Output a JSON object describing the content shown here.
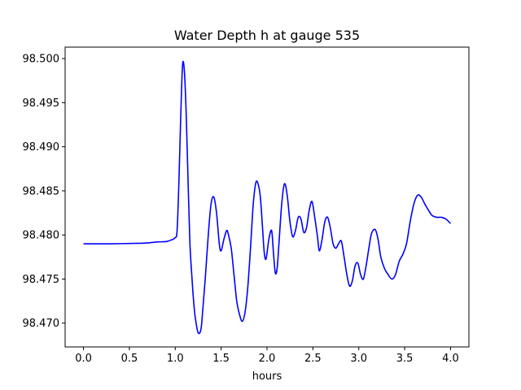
{
  "chart_data": {
    "type": "line",
    "title": "Water Depth h at gauge 535",
    "xlabel": "hours",
    "ylabel": "",
    "xlim": [
      -0.2,
      4.2
    ],
    "ylim": [
      98.4673,
      98.5013
    ],
    "x_ticks": [
      {
        "value": 0.0,
        "label": "0.0"
      },
      {
        "value": 0.5,
        "label": "0.5"
      },
      {
        "value": 1.0,
        "label": "1.0"
      },
      {
        "value": 1.5,
        "label": "1.5"
      },
      {
        "value": 2.0,
        "label": "2.0"
      },
      {
        "value": 2.5,
        "label": "2.5"
      },
      {
        "value": 3.0,
        "label": "3.0"
      },
      {
        "value": 3.5,
        "label": "3.5"
      },
      {
        "value": 4.0,
        "label": "4.0"
      }
    ],
    "y_ticks": [
      {
        "value": 98.47,
        "label": "98.470"
      },
      {
        "value": 98.475,
        "label": "98.475"
      },
      {
        "value": 98.48,
        "label": "98.480"
      },
      {
        "value": 98.485,
        "label": "98.485"
      },
      {
        "value": 98.49,
        "label": "98.490"
      },
      {
        "value": 98.495,
        "label": "98.495"
      },
      {
        "value": 98.5,
        "label": "98.500"
      }
    ],
    "grid": false,
    "series": [
      {
        "color": "#0000ff",
        "x": [
          0.0,
          0.3,
          0.6,
          0.7,
          0.8,
          0.9,
          0.95,
          1.0,
          1.02,
          1.04,
          1.06,
          1.08,
          1.1,
          1.12,
          1.14,
          1.16,
          1.18,
          1.2,
          1.22,
          1.25,
          1.28,
          1.3,
          1.33,
          1.36,
          1.39,
          1.42,
          1.45,
          1.48,
          1.5,
          1.53,
          1.56,
          1.58,
          1.61,
          1.64,
          1.67,
          1.7,
          1.73,
          1.76,
          1.79,
          1.82,
          1.85,
          1.88,
          1.91,
          1.93,
          1.95,
          1.97,
          1.99,
          2.02,
          2.05,
          2.07,
          2.09,
          2.11,
          2.13,
          2.16,
          2.19,
          2.22,
          2.25,
          2.28,
          2.31,
          2.34,
          2.37,
          2.4,
          2.43,
          2.46,
          2.49,
          2.52,
          2.55,
          2.57,
          2.6,
          2.63,
          2.66,
          2.69,
          2.72,
          2.75,
          2.78,
          2.81,
          2.84,
          2.87,
          2.9,
          2.93,
          2.96,
          2.99,
          3.02,
          3.05,
          3.08,
          3.11,
          3.14,
          3.18,
          3.21,
          3.24,
          3.28,
          3.32,
          3.36,
          3.4,
          3.44,
          3.48,
          3.52,
          3.56,
          3.6,
          3.64,
          3.68,
          3.72,
          3.76,
          3.8,
          3.85,
          3.9,
          3.95,
          4.0
        ],
        "y": [
          98.479,
          98.479,
          98.47905,
          98.4791,
          98.4792,
          98.47925,
          98.4794,
          98.4797,
          98.4805,
          98.486,
          98.4935,
          98.4993,
          98.4985,
          98.4935,
          98.486,
          98.479,
          98.4755,
          98.4725,
          98.4705,
          98.4689,
          98.4693,
          98.4715,
          98.4755,
          98.48,
          98.4835,
          98.4843,
          98.4825,
          98.479,
          98.4782,
          98.4795,
          98.4805,
          98.48,
          98.4785,
          98.4755,
          98.4725,
          98.471,
          98.4702,
          98.4712,
          98.474,
          98.4785,
          98.4835,
          98.486,
          98.4855,
          98.484,
          98.481,
          98.478,
          98.4773,
          98.4795,
          98.4805,
          98.478,
          98.4757,
          98.4762,
          98.479,
          98.4835,
          98.4858,
          98.4845,
          98.4815,
          98.4798,
          98.4805,
          98.482,
          98.4818,
          98.4803,
          98.4808,
          98.4828,
          98.4838,
          98.482,
          98.4798,
          98.4782,
          98.4795,
          98.4815,
          98.482,
          98.4808,
          98.479,
          98.4785,
          98.479,
          98.4793,
          98.4775,
          98.4755,
          98.4742,
          98.4748,
          98.4765,
          98.4768,
          98.4755,
          98.475,
          98.4765,
          98.4785,
          98.4802,
          98.4806,
          98.4795,
          98.4775,
          98.4762,
          98.4755,
          98.475,
          98.4755,
          98.477,
          98.4778,
          98.479,
          98.4815,
          98.4835,
          98.4845,
          98.4843,
          98.4835,
          98.4828,
          98.4822,
          98.482,
          98.482,
          98.4818,
          98.4813
        ]
      }
    ]
  }
}
